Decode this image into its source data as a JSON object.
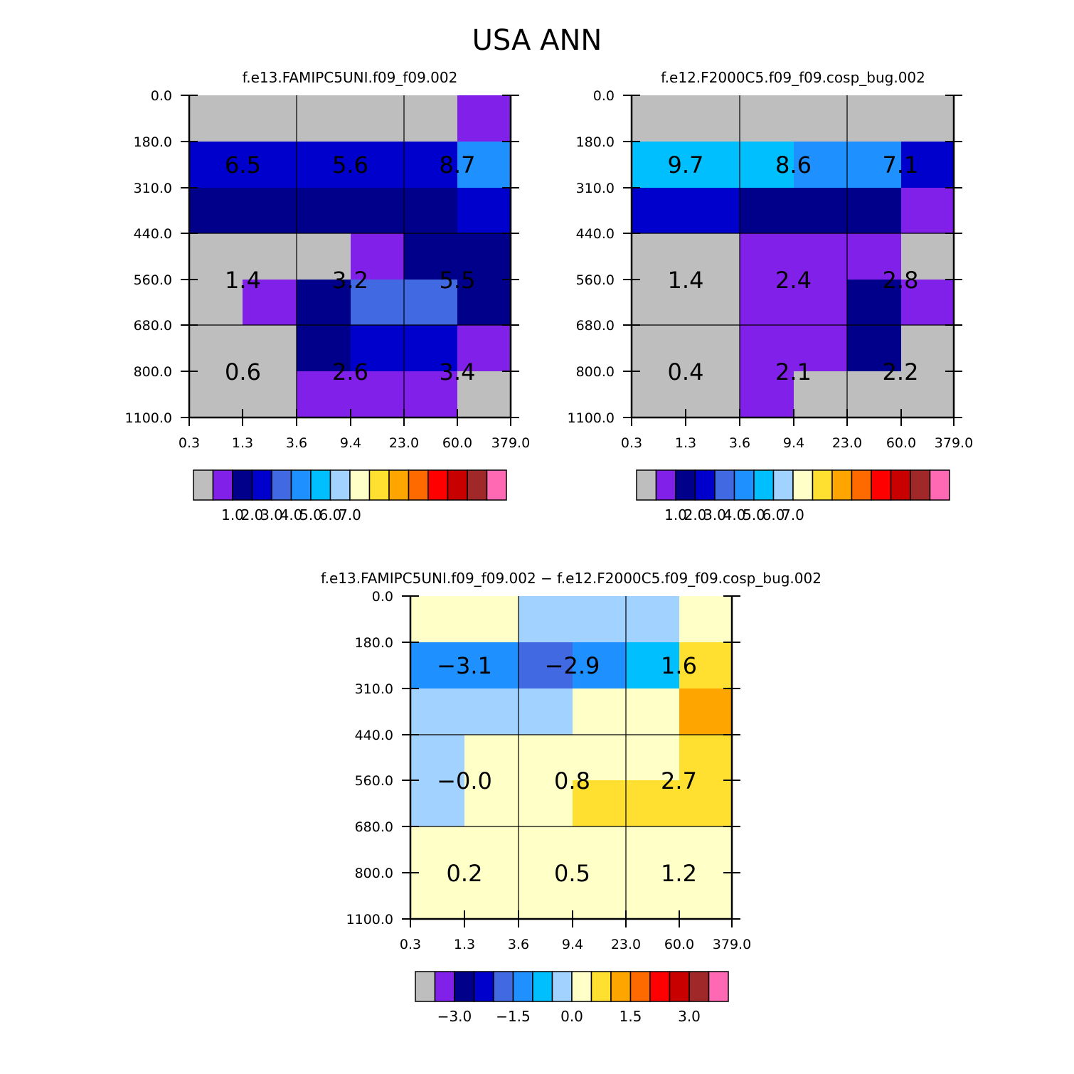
{
  "title": "USA ANN",
  "colors": {
    "palette": [
      "#bebebe",
      "#8020e8",
      "#00008b",
      "#0000cd",
      "#4169e1",
      "#1e90ff",
      "#00bfff",
      "#a2d2ff",
      "#ffffc8",
      "#ffe030",
      "#ffa500",
      "#ff6a00",
      "#ff0000",
      "#c80000",
      "#a02828",
      "#ff69b4"
    ],
    "border": "#000000"
  },
  "chart_data": [
    {
      "type": "heatmap",
      "id": "model",
      "title": "f.e13.FAMIPC5UNI.f09_f09.002",
      "x_ticks": [
        "0.3",
        "1.3",
        "3.6",
        "9.4",
        "23.0",
        "60.0",
        "379.0"
      ],
      "y_ticks": [
        "0.0",
        "180.0",
        "310.0",
        "440.0",
        "560.0",
        "680.0",
        "800.0",
        "1100.0"
      ],
      "cell_color_index": [
        [
          0,
          0,
          0,
          0,
          0,
          1
        ],
        [
          3,
          3,
          3,
          3,
          3,
          5
        ],
        [
          2,
          2,
          2,
          2,
          2,
          3
        ],
        [
          0,
          0,
          0,
          1,
          2,
          2
        ],
        [
          0,
          1,
          2,
          4,
          4,
          2
        ],
        [
          0,
          0,
          2,
          3,
          3,
          1
        ],
        [
          0,
          0,
          1,
          1,
          1,
          0
        ]
      ],
      "box_labels": [
        [
          "6.5",
          "5.6",
          "8.7"
        ],
        [
          "1.4",
          "3.2",
          "5.5"
        ],
        [
          "0.6",
          "2.6",
          "3.4"
        ]
      ],
      "legend": {
        "labels": [
          "1.0",
          "2.0",
          "3.0",
          "4.0",
          "5.0",
          "6.0",
          "7.0"
        ],
        "levels": 16
      }
    },
    {
      "type": "heatmap",
      "id": "obs",
      "title": "f.e12.F2000C5.f09_f09.cosp_bug.002",
      "x_ticks": [
        "0.3",
        "1.3",
        "3.6",
        "9.4",
        "23.0",
        "60.0",
        "379.0"
      ],
      "y_ticks": [
        "0.0",
        "180.0",
        "310.0",
        "440.0",
        "560.0",
        "680.0",
        "800.0",
        "1100.0"
      ],
      "cell_color_index": [
        [
          0,
          0,
          0,
          0,
          0,
          0
        ],
        [
          6,
          6,
          6,
          5,
          5,
          3
        ],
        [
          3,
          3,
          2,
          2,
          2,
          1
        ],
        [
          0,
          0,
          1,
          1,
          1,
          0
        ],
        [
          0,
          0,
          1,
          1,
          2,
          1
        ],
        [
          0,
          0,
          1,
          1,
          2,
          0
        ],
        [
          0,
          0,
          1,
          0,
          0,
          0
        ]
      ],
      "box_labels": [
        [
          "9.7",
          "8.6",
          "7.1"
        ],
        [
          "1.4",
          "2.4",
          "2.8"
        ],
        [
          "0.4",
          "2.1",
          "2.2"
        ]
      ],
      "legend": {
        "labels": [
          "1.0",
          "2.0",
          "3.0",
          "4.0",
          "5.0",
          "6.0",
          "7.0"
        ],
        "levels": 16
      }
    },
    {
      "type": "heatmap",
      "id": "diff",
      "title": "f.e13.FAMIPC5UNI.f09_f09.002 − f.e12.F2000C5.f09_f09.cosp_bug.002",
      "x_ticks": [
        "0.3",
        "1.3",
        "3.6",
        "9.4",
        "23.0",
        "60.0",
        "379.0"
      ],
      "y_ticks": [
        "0.0",
        "180.0",
        "310.0",
        "440.0",
        "560.0",
        "680.0",
        "800.0",
        "1100.0"
      ],
      "cell_color_index": [
        [
          8,
          8,
          7,
          7,
          7,
          8
        ],
        [
          5,
          5,
          4,
          5,
          6,
          9
        ],
        [
          7,
          7,
          7,
          8,
          8,
          10
        ],
        [
          7,
          8,
          8,
          8,
          8,
          9
        ],
        [
          7,
          8,
          8,
          9,
          9,
          9
        ],
        [
          8,
          8,
          8,
          8,
          8,
          8
        ],
        [
          8,
          8,
          8,
          8,
          8,
          8
        ]
      ],
      "box_labels": [
        [
          "−3.1",
          "−2.9",
          "1.6"
        ],
        [
          "−0.0",
          "0.8",
          "2.7"
        ],
        [
          "0.2",
          "0.5",
          "1.2"
        ]
      ],
      "legend": {
        "labels": [
          "−3.0",
          "−1.5",
          "0.0",
          "1.5",
          "3.0"
        ],
        "levels": 16
      }
    }
  ]
}
